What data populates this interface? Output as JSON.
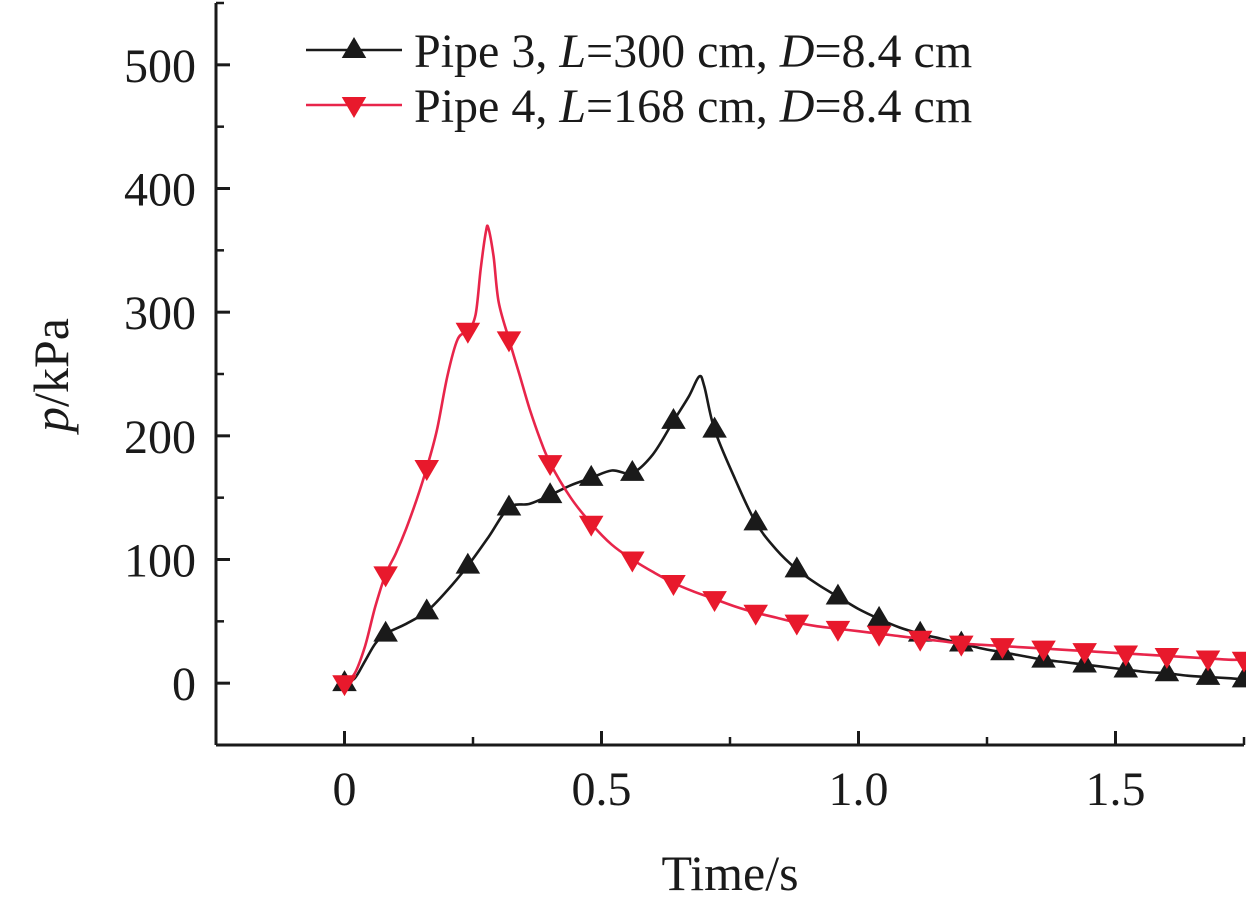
{
  "chart_data": {
    "type": "line",
    "xlabel": "Time/s",
    "ylabel_italic": "p",
    "ylabel_unit": "/kPa",
    "xlim": [
      -0.25,
      1.75
    ],
    "ylim": [
      -50,
      550
    ],
    "xticks": [
      0,
      0.5,
      1.0,
      1.5
    ],
    "xtick_labels": [
      "0",
      "0.5",
      "1.0",
      "1.5"
    ],
    "yticks": [
      0,
      100,
      200,
      300,
      400,
      500
    ],
    "ytick_labels": [
      "0",
      "100",
      "200",
      "300",
      "400",
      "500"
    ],
    "grid": false,
    "legend_position": "top-right",
    "series": [
      {
        "name": "Pipe 3, L=300 cm, D=8.4 cm",
        "legend": {
          "prefix": "Pipe 3, ",
          "L_sym": "L",
          "L_val": "=300 cm, ",
          "D_sym": "D",
          "D_val": "=8.4 cm"
        },
        "color": "#1a1a1a",
        "marker": "triangle-up",
        "curve_x": [
          0,
          0.02,
          0.04,
          0.06,
          0.08,
          0.12,
          0.16,
          0.2,
          0.24,
          0.28,
          0.32,
          0.36,
          0.4,
          0.44,
          0.48,
          0.52,
          0.56,
          0.6,
          0.64,
          0.67,
          0.69,
          0.7,
          0.72,
          0.76,
          0.8,
          0.84,
          0.88,
          0.92,
          0.96,
          1.0,
          1.04,
          1.08,
          1.12,
          1.16,
          1.2,
          1.24,
          1.28,
          1.32,
          1.36,
          1.4,
          1.44,
          1.48,
          1.52,
          1.56,
          1.6,
          1.64,
          1.68,
          1.72,
          1.75
        ],
        "curve_y": [
          0,
          4,
          18,
          32,
          40,
          48,
          58,
          75,
          95,
          118,
          142,
          145,
          152,
          160,
          166,
          172,
          170,
          185,
          212,
          232,
          248,
          240,
          205,
          165,
          130,
          108,
          92,
          80,
          70,
          60,
          52,
          45,
          40,
          36,
          32,
          28,
          25,
          22,
          19,
          17,
          15,
          13,
          11,
          9,
          8,
          6,
          5,
          4,
          3
        ],
        "marker_x": [
          0,
          0.08,
          0.16,
          0.24,
          0.32,
          0.4,
          0.48,
          0.56,
          0.64,
          0.72,
          0.8,
          0.88,
          0.96,
          1.04,
          1.12,
          1.2,
          1.28,
          1.36,
          1.44,
          1.52,
          1.6,
          1.68,
          1.75
        ],
        "marker_y": [
          0,
          40,
          58,
          95,
          142,
          152,
          166,
          170,
          212,
          205,
          130,
          92,
          70,
          52,
          40,
          32,
          25,
          19,
          15,
          11,
          8,
          5,
          3
        ]
      },
      {
        "name": "Pipe 4, L=168 cm, D=8.4 cm",
        "legend": {
          "prefix": "Pipe 4, ",
          "L_sym": "L",
          "L_val": "=168 cm, ",
          "D_sym": "D",
          "D_val": "=8.4 cm"
        },
        "color": "#e8254a",
        "marker_color": "#e8192c",
        "marker": "triangle-down",
        "curve_x": [
          0,
          0.02,
          0.04,
          0.06,
          0.08,
          0.1,
          0.12,
          0.14,
          0.16,
          0.18,
          0.2,
          0.22,
          0.24,
          0.255,
          0.265,
          0.275,
          0.28,
          0.29,
          0.3,
          0.32,
          0.34,
          0.36,
          0.38,
          0.4,
          0.44,
          0.48,
          0.52,
          0.56,
          0.6,
          0.64,
          0.68,
          0.72,
          0.76,
          0.8,
          0.84,
          0.88,
          0.92,
          0.96,
          1.0,
          1.04,
          1.08,
          1.12,
          1.16,
          1.2,
          1.24,
          1.28,
          1.32,
          1.36,
          1.4,
          1.44,
          1.48,
          1.52,
          1.56,
          1.6,
          1.64,
          1.68,
          1.72,
          1.75
        ],
        "curve_y": [
          0,
          8,
          30,
          62,
          88,
          105,
          125,
          148,
          174,
          205,
          248,
          278,
          285,
          298,
          335,
          365,
          368,
          345,
          308,
          278,
          250,
          222,
          198,
          178,
          150,
          129,
          112,
          100,
          90,
          81,
          74,
          68,
          62,
          57,
          53,
          49,
          46,
          44,
          42,
          40,
          38,
          36,
          34,
          32,
          31,
          30,
          29,
          28,
          27,
          26,
          25,
          24,
          23,
          22,
          21,
          20,
          19,
          19
        ],
        "marker_x": [
          0,
          0.08,
          0.16,
          0.24,
          0.32,
          0.4,
          0.48,
          0.56,
          0.64,
          0.72,
          0.8,
          0.88,
          0.96,
          1.04,
          1.12,
          1.2,
          1.28,
          1.36,
          1.44,
          1.52,
          1.6,
          1.68,
          1.75
        ],
        "marker_y": [
          0,
          88,
          174,
          285,
          278,
          178,
          129,
          100,
          81,
          68,
          57,
          49,
          44,
          40,
          36,
          32,
          30,
          28,
          26,
          24,
          22,
          20,
          19
        ]
      }
    ]
  }
}
